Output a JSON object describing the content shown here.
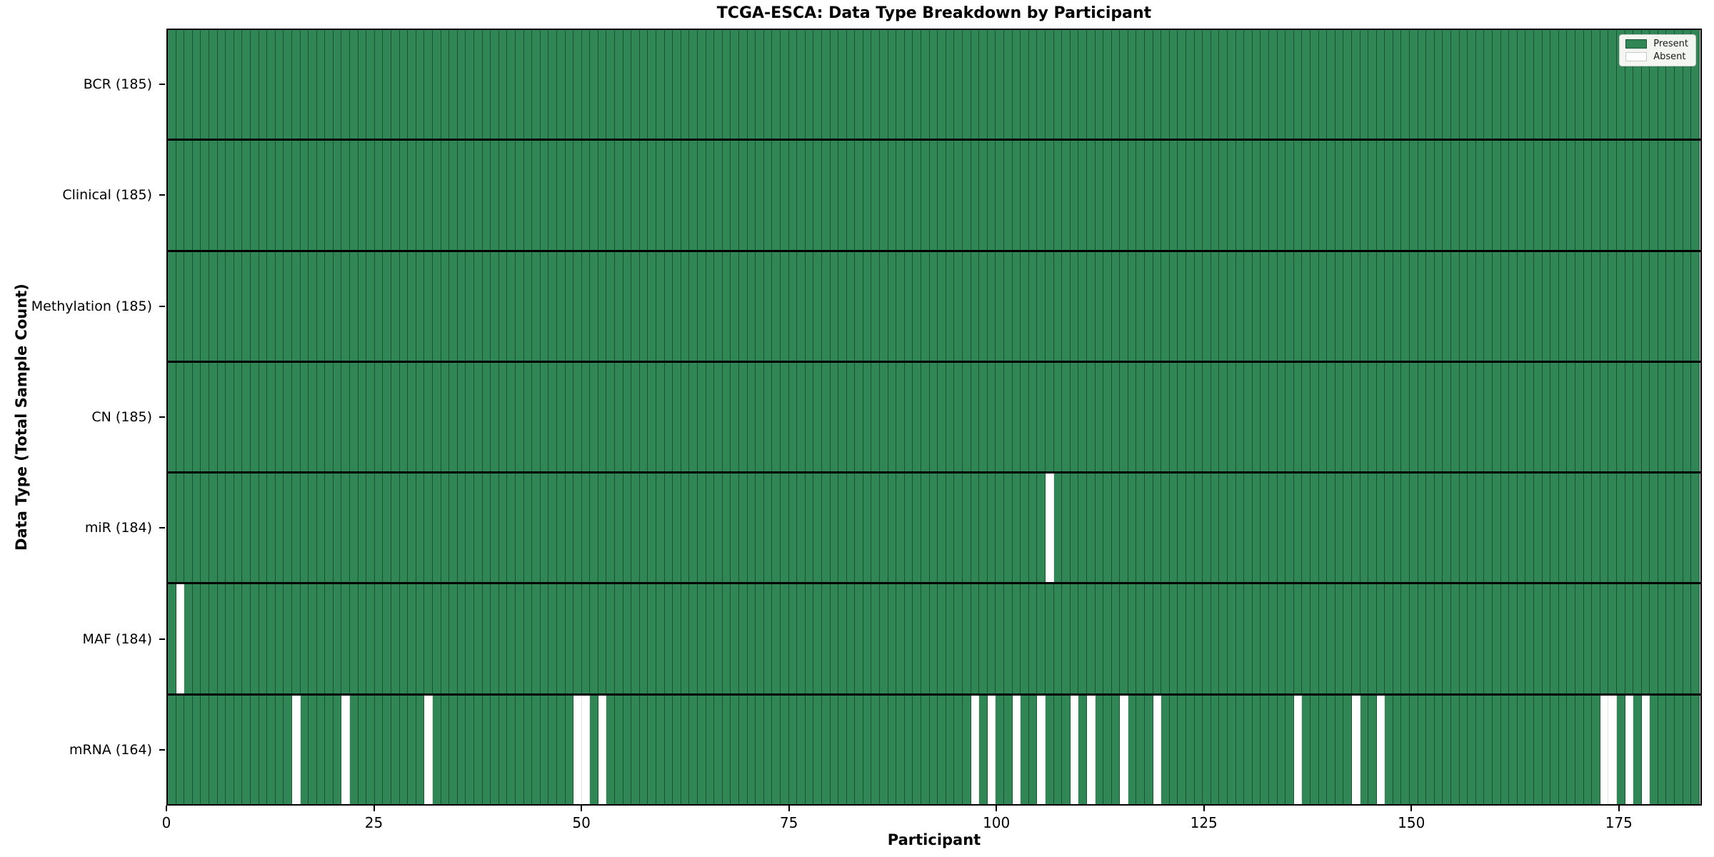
{
  "colors": {
    "present_fill": "#318656",
    "present_edge": "#1a5334",
    "absent_fill": "#ffffff",
    "absent_edge": "#e3e3e3",
    "row_separator": "#000000",
    "spine": "#000000",
    "legend_bg": "#f4f6f1",
    "legend_border": "#c9c9c9"
  },
  "chart_data": {
    "type": "heatmap",
    "title": "TCGA-ESCA: Data Type Breakdown by Participant",
    "xlabel": "Participant",
    "ylabel": "Data Type (Total Sample Count)",
    "n_participants": 185,
    "xlim": [
      0,
      185
    ],
    "x_ticks": [
      0,
      25,
      50,
      75,
      100,
      125,
      150,
      175
    ],
    "grid": false,
    "legend_position": "upper right",
    "legend_entries": [
      {
        "label": "Present",
        "state": "present"
      },
      {
        "label": "Absent",
        "state": "absent"
      }
    ],
    "rows": [
      {
        "label": "BCR (185)",
        "name": "BCR",
        "total": 185,
        "absent": []
      },
      {
        "label": "Clinical (185)",
        "name": "Clinical",
        "total": 185,
        "absent": []
      },
      {
        "label": "Methylation (185)",
        "name": "Methylation",
        "total": 185,
        "absent": []
      },
      {
        "label": "CN (185)",
        "name": "CN",
        "total": 185,
        "absent": []
      },
      {
        "label": "miR (184)",
        "name": "miR",
        "total": 184,
        "absent": [
          106
        ]
      },
      {
        "label": "MAF (184)",
        "name": "MAF",
        "total": 184,
        "absent": [
          1
        ]
      },
      {
        "label": "mRNA (164)",
        "name": "mRNA",
        "total": 164,
        "absent": [
          15,
          21,
          31,
          49,
          50,
          52,
          97,
          99,
          102,
          105,
          109,
          111,
          115,
          119,
          136,
          143,
          146,
          173,
          174,
          176,
          178
        ]
      }
    ]
  }
}
